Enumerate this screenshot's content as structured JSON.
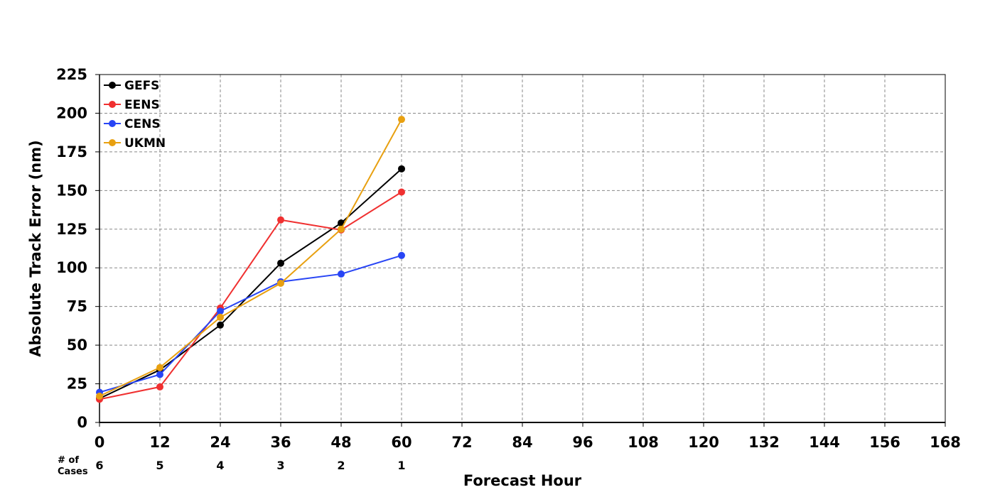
{
  "chart_data": {
    "type": "line",
    "xlabel": "Forecast Hour",
    "ylabel": "Absolute Track Error (nm)",
    "xlim": [
      0,
      168
    ],
    "ylim": [
      0,
      225
    ],
    "x_ticks": [
      0,
      12,
      24,
      36,
      48,
      60,
      72,
      84,
      96,
      108,
      120,
      132,
      144,
      156,
      168
    ],
    "y_ticks": [
      0,
      25,
      50,
      75,
      100,
      125,
      150,
      175,
      200,
      225
    ],
    "grid": true,
    "legend_position": "top-left",
    "series": [
      {
        "name": "GEFS",
        "color": "#000000",
        "x": [
          0,
          12,
          24,
          36,
          48,
          60
        ],
        "values": [
          15.5,
          34,
          63,
          103,
          129,
          164
        ]
      },
      {
        "name": "EENS",
        "color": "#f03030",
        "x": [
          0,
          12,
          24,
          36,
          48,
          60
        ],
        "values": [
          15,
          23,
          74,
          131,
          124.5,
          149
        ]
      },
      {
        "name": "CENS",
        "color": "#2845f5",
        "x": [
          0,
          12,
          24,
          36,
          48,
          60
        ],
        "values": [
          19.5,
          31,
          72,
          91,
          96,
          108
        ]
      },
      {
        "name": "UKMN",
        "color": "#e8a010",
        "x": [
          0,
          12,
          24,
          36,
          48,
          60
        ],
        "values": [
          17,
          35.5,
          68,
          90,
          125,
          196
        ]
      }
    ],
    "cases": {
      "header_line1": "# of",
      "header_line2": "Cases",
      "x": [
        0,
        12,
        24,
        36,
        48,
        60
      ],
      "values": [
        "6",
        "5",
        "4",
        "3",
        "2",
        "1"
      ]
    }
  }
}
